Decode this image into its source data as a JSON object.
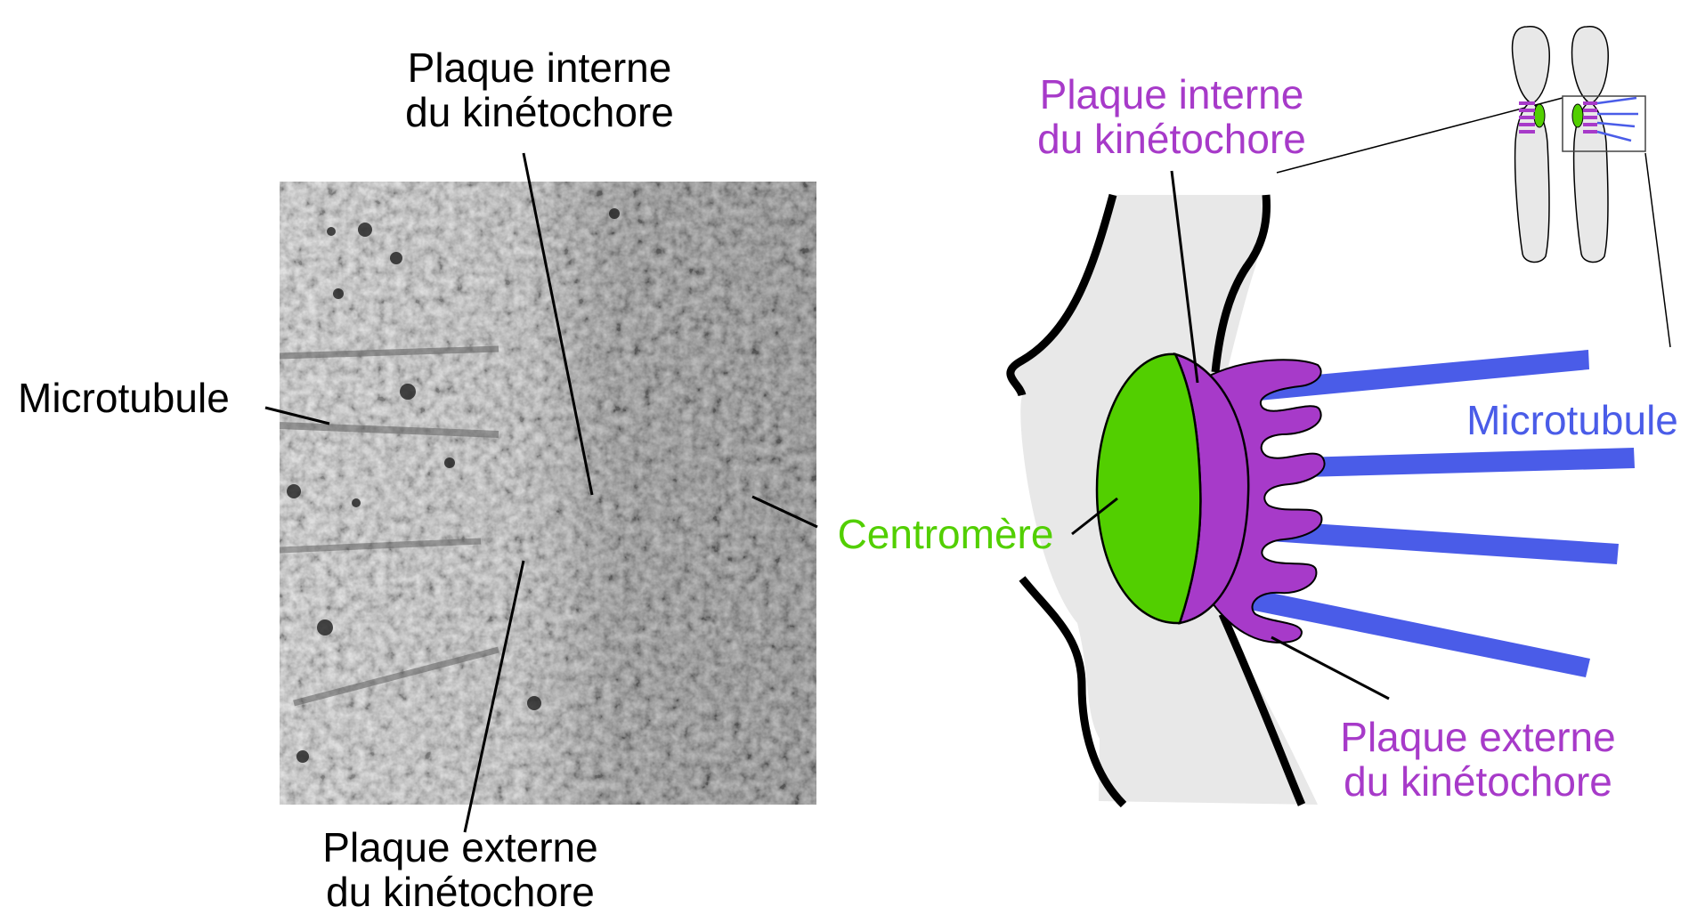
{
  "micrograph": {
    "label_inner_l1": "Plaque interne",
    "label_inner_l2": "du kinétochore",
    "label_microtubule": "Microtubule",
    "label_outer_l1": "Plaque externe",
    "label_outer_l2": "du kinétochore"
  },
  "schematic": {
    "label_inner_l1": "Plaque interne",
    "label_inner_l2": "du kinétochore",
    "label_microtubule": "Microtubule",
    "label_centromere": "Centromère",
    "label_outer_l1": "Plaque externe",
    "label_outer_l2": "du kinétochore"
  },
  "colors": {
    "label_black": "#000000",
    "inner_plate_purple": "#a73ac9",
    "centromere_green": "#52cf00",
    "microtubule_blue": "#4a5ce8",
    "chromosome_fill": "#e8e8e8",
    "outline": "#000000"
  }
}
